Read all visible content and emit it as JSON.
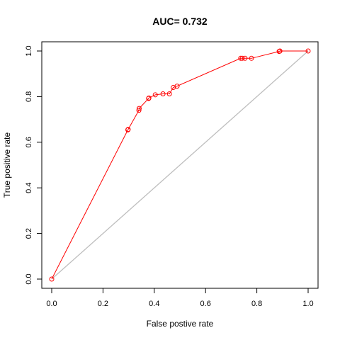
{
  "chart_data": {
    "type": "line",
    "title": "AUC= 0.732",
    "xlabel": "False postive rate",
    "ylabel": "True positive rate",
    "xlim": [
      0,
      1
    ],
    "ylim": [
      0,
      1
    ],
    "xticks": [
      "0.0",
      "0.2",
      "0.4",
      "0.6",
      "0.8",
      "1.0"
    ],
    "yticks": [
      "0.0",
      "0.2",
      "0.4",
      "0.6",
      "0.8",
      "1.0"
    ],
    "grid": false,
    "reference_line": {
      "x": [
        0,
        1
      ],
      "y": [
        0,
        1
      ],
      "color": "#bebebe"
    },
    "series": [
      {
        "color": "#ff0000",
        "marker": "open-circle",
        "x": [
          0.0,
          0.297,
          0.298,
          0.34,
          0.341,
          0.378,
          0.379,
          0.404,
          0.434,
          0.459,
          0.474,
          0.489,
          0.737,
          0.743,
          0.754,
          0.779,
          0.887,
          0.89,
          1.0
        ],
        "y": [
          0.0,
          0.654,
          0.656,
          0.74,
          0.748,
          0.792,
          0.794,
          0.808,
          0.812,
          0.812,
          0.84,
          0.846,
          0.968,
          0.968,
          0.968,
          0.968,
          0.998,
          1.0,
          1.0
        ]
      }
    ]
  }
}
